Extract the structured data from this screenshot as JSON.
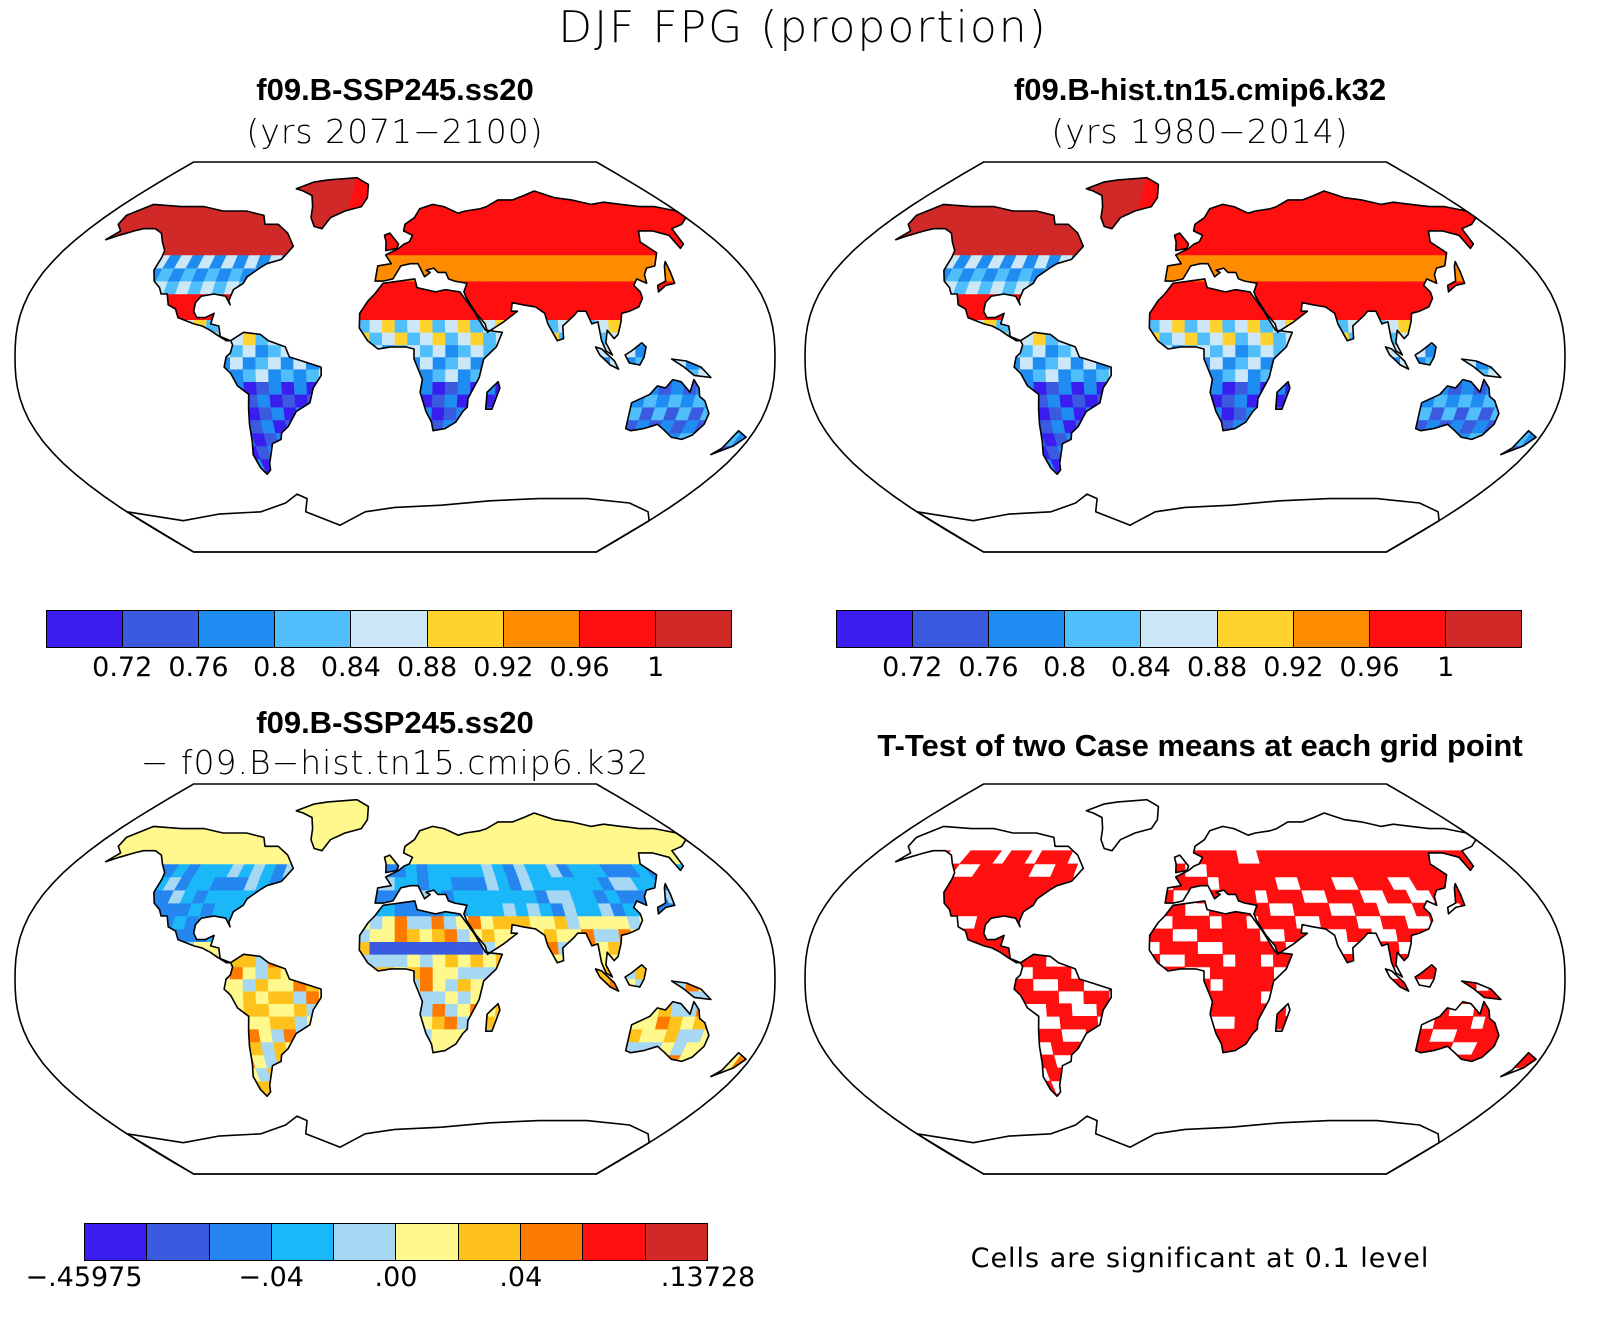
{
  "figure_title": "DJF FPG (proportion)",
  "panels": [
    {
      "title": "f09.B-SSP245.ss20",
      "subtitle": "(yrs 2071−2100)"
    },
    {
      "title": "f09.B-hist.tn15.cmip6.k32",
      "subtitle": "(yrs 1980−2014)"
    },
    {
      "title": "f09.B-SSP245.ss20",
      "subtitle": "− f09.B−hist.tn15.cmip6.k32"
    },
    {
      "title": "T-Test of two Case means at each grid point",
      "subtitle": ""
    }
  ],
  "colorbar_abs": {
    "colors": [
      "#3a1ef0",
      "#3a5be0",
      "#1e8cf0",
      "#50befa",
      "#cce8f8",
      "#ffd22e",
      "#ff8c00",
      "#ff0f0f",
      "#d12828"
    ],
    "labels": [
      "0.72",
      "0.76",
      "0.8",
      "0.84",
      "0.88",
      "0.92",
      "0.96",
      "1"
    ]
  },
  "colorbar_diff": {
    "colors": [
      "#3a1ef0",
      "#3a5be0",
      "#2486ee",
      "#1ab8f8",
      "#a6d8f4",
      "#fff88c",
      "#ffc21c",
      "#ff7a00",
      "#ff0f0f",
      "#d12828"
    ],
    "labels": [
      "−.45975",
      "−.04",
      ".00",
      ".04",
      ".13728"
    ]
  },
  "ttest_note": "Cells are significant at 0.1 level",
  "chart_data": {
    "type": "heatmap",
    "variable": "DJF FPG",
    "units": "proportion",
    "abs_levels": [
      0.72,
      0.76,
      0.8,
      0.84,
      0.88,
      0.92,
      0.96,
      1
    ],
    "diff_levels_labeled": [
      -0.45975,
      -0.04,
      0.0,
      0.04,
      0.13728
    ],
    "significance_level": 0.1
  }
}
